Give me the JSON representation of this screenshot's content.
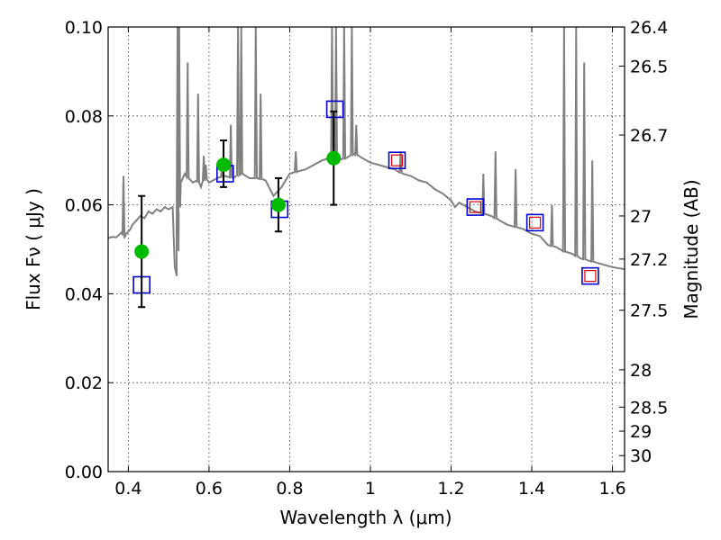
{
  "chart_data": {
    "type": "scatter",
    "xlabel": "Wavelength  λ (μm)",
    "ylabel": "Flux  Fν  ( μJy )",
    "ylabel_right": "Magnitude (AB)",
    "xlim": [
      0.35,
      1.63
    ],
    "ylim": [
      0.0,
      0.1
    ],
    "x_ticks": [
      0.4,
      0.6,
      0.8,
      1.0,
      1.2,
      1.4,
      1.6
    ],
    "x_tick_labels": [
      "0.4",
      "0.6",
      "0.8",
      "1",
      "1.2",
      "1.4",
      "1.6"
    ],
    "y_ticks": [
      0.0,
      0.02,
      0.04,
      0.06,
      0.08,
      0.1
    ],
    "y_tick_labels": [
      "0.00",
      "0.02",
      "0.04",
      "0.06",
      "0.08",
      "0.10"
    ],
    "right_ticks": [
      {
        "flux": 0.1,
        "label": "26.4"
      },
      {
        "flux": 0.0912,
        "label": "26.5"
      },
      {
        "flux": 0.0757,
        "label": "26.7"
      },
      {
        "flux": 0.0575,
        "label": "27"
      },
      {
        "flux": 0.0478,
        "label": "27.2"
      },
      {
        "flux": 0.0363,
        "label": "27.5"
      },
      {
        "flux": 0.0229,
        "label": "28"
      },
      {
        "flux": 0.0145,
        "label": "28.5"
      },
      {
        "flux": 0.0091,
        "label": "29"
      },
      {
        "flux": 0.0036,
        "label": "30"
      }
    ],
    "grid": true,
    "series": [
      {
        "kind": "line",
        "color": "#808080",
        "points": [
          [
            0.35,
            0.0525
          ],
          [
            0.36,
            0.0528
          ],
          [
            0.37,
            0.0527
          ],
          [
            0.38,
            0.0535
          ],
          [
            0.385,
            0.054
          ],
          [
            0.39,
            0.0525
          ],
          [
            0.395,
            0.0535
          ],
          [
            0.4,
            0.054
          ],
          [
            0.405,
            0.0545
          ],
          [
            0.41,
            0.0555
          ],
          [
            0.42,
            0.0565
          ],
          [
            0.43,
            0.0575
          ],
          [
            0.44,
            0.057
          ],
          [
            0.45,
            0.0585
          ],
          [
            0.46,
            0.058
          ],
          [
            0.47,
            0.059
          ],
          [
            0.48,
            0.0585
          ],
          [
            0.49,
            0.0595
          ],
          [
            0.5,
            0.059
          ],
          [
            0.51,
            0.0595
          ],
          [
            0.515,
            0.046
          ],
          [
            0.52,
            0.044
          ],
          [
            0.525,
            0.058
          ],
          [
            0.53,
            0.065
          ],
          [
            0.54,
            0.067
          ],
          [
            0.55,
            0.066
          ],
          [
            0.56,
            0.065
          ],
          [
            0.57,
            0.0655
          ],
          [
            0.58,
            0.064
          ],
          [
            0.59,
            0.066
          ],
          [
            0.6,
            0.065
          ],
          [
            0.62,
            0.066
          ],
          [
            0.64,
            0.0665
          ],
          [
            0.66,
            0.066
          ],
          [
            0.68,
            0.067
          ],
          [
            0.7,
            0.066
          ],
          [
            0.72,
            0.066
          ],
          [
            0.74,
            0.0655
          ],
          [
            0.76,
            0.062
          ],
          [
            0.78,
            0.064
          ],
          [
            0.8,
            0.067
          ],
          [
            0.82,
            0.0675
          ],
          [
            0.84,
            0.068
          ],
          [
            0.86,
            0.069
          ],
          [
            0.88,
            0.07
          ],
          [
            0.9,
            0.0705
          ],
          [
            0.92,
            0.07
          ],
          [
            0.94,
            0.0705
          ],
          [
            0.96,
            0.0715
          ],
          [
            0.98,
            0.0705
          ],
          [
            1.0,
            0.0695
          ],
          [
            1.02,
            0.069
          ],
          [
            1.04,
            0.0685
          ],
          [
            1.06,
            0.068
          ],
          [
            1.08,
            0.067
          ],
          [
            1.1,
            0.0665
          ],
          [
            1.12,
            0.0655
          ],
          [
            1.14,
            0.065
          ],
          [
            1.16,
            0.0635
          ],
          [
            1.18,
            0.0625
          ],
          [
            1.2,
            0.061
          ],
          [
            1.21,
            0.0595
          ],
          [
            1.22,
            0.0605
          ],
          [
            1.24,
            0.0595
          ],
          [
            1.26,
            0.0585
          ],
          [
            1.28,
            0.058
          ],
          [
            1.3,
            0.0575
          ],
          [
            1.32,
            0.0565
          ],
          [
            1.34,
            0.0555
          ],
          [
            1.36,
            0.055
          ],
          [
            1.38,
            0.0545
          ],
          [
            1.4,
            0.0535
          ],
          [
            1.42,
            0.053
          ],
          [
            1.44,
            0.051
          ],
          [
            1.46,
            0.0505
          ],
          [
            1.48,
            0.0495
          ],
          [
            1.5,
            0.049
          ],
          [
            1.52,
            0.048
          ],
          [
            1.54,
            0.0475
          ],
          [
            1.56,
            0.047
          ],
          [
            1.58,
            0.0465
          ],
          [
            1.6,
            0.046
          ],
          [
            1.63,
            0.0455
          ]
        ],
        "spikes": [
          [
            0.388,
            0.0665
          ],
          [
            0.522,
            0.1
          ],
          [
            0.526,
            0.1
          ],
          [
            0.547,
            0.092
          ],
          [
            0.573,
            0.085
          ],
          [
            0.587,
            0.071
          ],
          [
            0.592,
            0.069
          ],
          [
            0.632,
            0.068
          ],
          [
            0.654,
            0.078
          ],
          [
            0.672,
            0.1
          ],
          [
            0.68,
            0.1
          ],
          [
            0.716,
            0.1
          ],
          [
            0.728,
            0.085
          ],
          [
            0.815,
            0.072
          ],
          [
            0.905,
            0.1
          ],
          [
            0.915,
            0.1
          ],
          [
            0.935,
            0.1
          ],
          [
            0.954,
            0.1
          ],
          [
            0.965,
            0.078
          ],
          [
            1.075,
            0.072
          ],
          [
            1.28,
            0.067
          ],
          [
            1.31,
            0.072
          ],
          [
            1.36,
            0.068
          ],
          [
            1.45,
            0.06
          ],
          [
            1.48,
            0.1
          ],
          [
            1.51,
            0.1
          ],
          [
            1.53,
            0.092
          ],
          [
            1.55,
            0.07
          ]
        ]
      },
      {
        "kind": "square",
        "color": "#0000cc",
        "points": [
          [
            0.433,
            0.042
          ],
          [
            0.64,
            0.067
          ],
          [
            0.775,
            0.059
          ],
          [
            0.912,
            0.0815
          ],
          [
            1.066,
            0.07
          ],
          [
            1.26,
            0.0595
          ],
          [
            1.408,
            0.056
          ],
          [
            1.545,
            0.044
          ]
        ]
      },
      {
        "kind": "square",
        "color": "#dd0000",
        "points": [
          [
            1.066,
            0.07
          ],
          [
            1.26,
            0.0595
          ],
          [
            1.408,
            0.056
          ],
          [
            1.545,
            0.044
          ]
        ]
      },
      {
        "kind": "circle",
        "color": "#00bb00",
        "points": [
          [
            0.433,
            0.0495,
            0.037,
            0.062
          ],
          [
            0.636,
            0.069,
            0.064,
            0.0745
          ],
          [
            0.772,
            0.06,
            0.054,
            0.066
          ],
          [
            0.909,
            0.0705,
            0.06,
            0.081
          ]
        ]
      }
    ]
  }
}
